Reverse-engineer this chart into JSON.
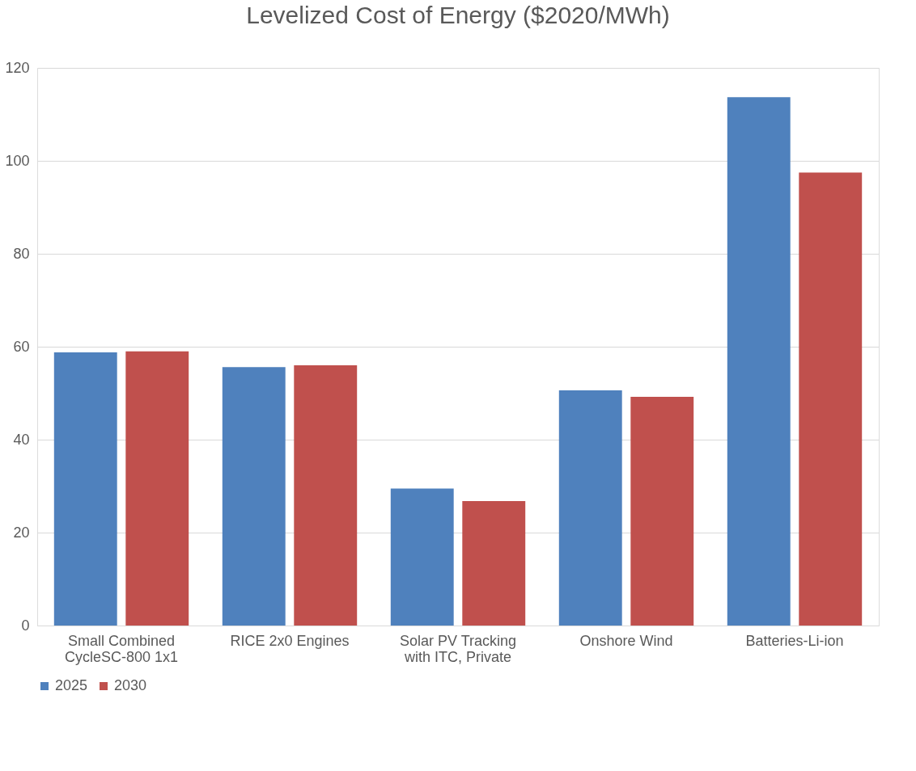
{
  "chart_data": {
    "type": "bar",
    "title": "Levelized Cost of Energy ($2020/MWh)",
    "categories": [
      "Small Combined CycleSC-800 1x1",
      "RICE 2x0 Engines",
      "Solar PV Tracking with ITC, Private",
      "Onshore Wind",
      "Batteries-Li-ion"
    ],
    "series": [
      {
        "name": "2025",
        "color": "#4f81bd",
        "values": [
          58.8,
          55.6,
          29.5,
          50.6,
          113.7
        ]
      },
      {
        "name": "2030",
        "color": "#c0504d",
        "values": [
          59.0,
          56.0,
          26.8,
          49.2,
          97.5
        ]
      }
    ],
    "ylim": [
      0,
      120
    ],
    "yticks": [
      0,
      20,
      40,
      60,
      80,
      100,
      120
    ],
    "grid": "y",
    "legend": "bottom"
  }
}
